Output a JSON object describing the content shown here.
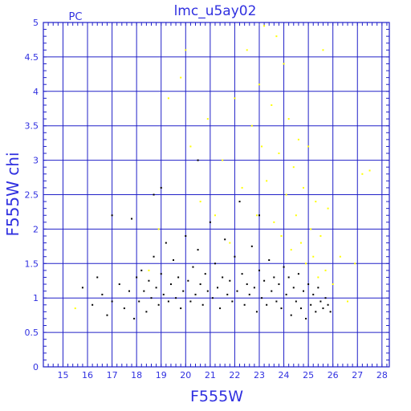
{
  "chart_data": {
    "type": "scatter",
    "title": "lmc_u5ay02",
    "corner_label": "PC",
    "xlabel": "F555W",
    "ylabel": "F555W chi",
    "xlim": [
      14.2,
      28.3
    ],
    "ylim": [
      0,
      5
    ],
    "xticks": [
      15,
      16,
      17,
      18,
      19,
      20,
      21,
      22,
      23,
      24,
      25,
      26,
      27,
      28
    ],
    "yticks": [
      0,
      0.5,
      1,
      1.5,
      2,
      2.5,
      3,
      3.5,
      4,
      4.5,
      5
    ],
    "grid": true,
    "colors": {
      "axis": "#3030e0",
      "grid": "#2020c8",
      "black_series": "#000000",
      "yellow_series": "#ffff00"
    },
    "series": [
      {
        "color": "black",
        "points": [
          [
            15.8,
            1.15
          ],
          [
            16.2,
            0.9
          ],
          [
            16.4,
            1.3
          ],
          [
            16.6,
            1.05
          ],
          [
            16.8,
            0.75
          ],
          [
            17.0,
            2.2
          ],
          [
            17.0,
            0.95
          ],
          [
            17.3,
            1.2
          ],
          [
            17.5,
            0.85
          ],
          [
            17.7,
            1.1
          ],
          [
            17.8,
            2.15
          ],
          [
            17.9,
            0.7
          ],
          [
            18.0,
            1.3
          ],
          [
            18.1,
            0.95
          ],
          [
            18.2,
            1.4
          ],
          [
            18.3,
            1.1
          ],
          [
            18.4,
            0.8
          ],
          [
            18.5,
            1.25
          ],
          [
            18.6,
            1.0
          ],
          [
            18.7,
            1.6
          ],
          [
            18.7,
            2.5
          ],
          [
            18.8,
            1.15
          ],
          [
            18.9,
            0.9
          ],
          [
            19.0,
            2.6
          ],
          [
            19.0,
            1.35
          ],
          [
            19.1,
            1.05
          ],
          [
            19.2,
            1.8
          ],
          [
            19.3,
            0.95
          ],
          [
            19.4,
            1.2
          ],
          [
            19.5,
            1.55
          ],
          [
            19.6,
            1.0
          ],
          [
            19.7,
            1.3
          ],
          [
            19.8,
            0.85
          ],
          [
            19.9,
            1.1
          ],
          [
            20.0,
            1.9
          ],
          [
            20.1,
            1.25
          ],
          [
            20.2,
            0.95
          ],
          [
            20.3,
            1.45
          ],
          [
            20.4,
            1.05
          ],
          [
            20.5,
            3.0
          ],
          [
            20.5,
            1.7
          ],
          [
            20.6,
            1.2
          ],
          [
            20.7,
            0.9
          ],
          [
            20.8,
            1.35
          ],
          [
            20.9,
            1.1
          ],
          [
            21.0,
            2.1
          ],
          [
            21.1,
            1.0
          ],
          [
            21.2,
            1.5
          ],
          [
            21.3,
            1.15
          ],
          [
            21.4,
            0.85
          ],
          [
            21.5,
            1.3
          ],
          [
            21.6,
            1.85
          ],
          [
            21.7,
            1.05
          ],
          [
            21.8,
            1.25
          ],
          [
            21.9,
            0.95
          ],
          [
            22.0,
            1.6
          ],
          [
            22.1,
            1.1
          ],
          [
            22.2,
            2.4
          ],
          [
            22.3,
            1.35
          ],
          [
            22.4,
            0.9
          ],
          [
            22.5,
            1.2
          ],
          [
            22.6,
            1.05
          ],
          [
            22.7,
            1.75
          ],
          [
            22.8,
            1.15
          ],
          [
            22.9,
            0.8
          ],
          [
            23.0,
            2.2
          ],
          [
            23.0,
            1.4
          ],
          [
            23.1,
            1.0
          ],
          [
            23.2,
            1.25
          ],
          [
            23.3,
            0.9
          ],
          [
            23.4,
            1.55
          ],
          [
            23.5,
            1.1
          ],
          [
            23.6,
            1.3
          ],
          [
            23.7,
            0.95
          ],
          [
            23.8,
            1.2
          ],
          [
            23.9,
            0.85
          ],
          [
            24.0,
            1.45
          ],
          [
            24.1,
            1.05
          ],
          [
            24.2,
            1.3
          ],
          [
            24.3,
            0.75
          ],
          [
            24.4,
            1.15
          ],
          [
            24.5,
            0.95
          ],
          [
            24.6,
            1.35
          ],
          [
            24.7,
            0.85
          ],
          [
            24.8,
            1.1
          ],
          [
            24.9,
            0.7
          ],
          [
            25.0,
            1.2
          ],
          [
            25.1,
            0.9
          ],
          [
            25.2,
            1.05
          ],
          [
            25.3,
            0.8
          ],
          [
            25.4,
            1.15
          ],
          [
            25.5,
            0.95
          ],
          [
            25.6,
            0.85
          ],
          [
            25.7,
            1.0
          ],
          [
            25.8,
            0.9
          ],
          [
            25.9,
            0.8
          ]
        ]
      },
      {
        "color": "yellow",
        "points": [
          [
            15.5,
            0.85
          ],
          [
            18.5,
            1.4
          ],
          [
            18.9,
            2.0
          ],
          [
            19.3,
            3.9
          ],
          [
            19.8,
            4.2
          ],
          [
            20.0,
            4.6
          ],
          [
            20.2,
            3.2
          ],
          [
            20.6,
            2.4
          ],
          [
            20.9,
            3.6
          ],
          [
            21.2,
            2.2
          ],
          [
            21.5,
            3.0
          ],
          [
            21.8,
            1.8
          ],
          [
            22.0,
            3.9
          ],
          [
            22.3,
            2.6
          ],
          [
            22.5,
            4.6
          ],
          [
            22.7,
            3.5
          ],
          [
            22.9,
            2.2
          ],
          [
            23.0,
            4.1
          ],
          [
            23.1,
            3.2
          ],
          [
            23.2,
            4.95
          ],
          [
            23.3,
            2.7
          ],
          [
            23.5,
            3.8
          ],
          [
            23.6,
            2.1
          ],
          [
            23.7,
            4.8
          ],
          [
            23.8,
            3.1
          ],
          [
            23.9,
            1.9
          ],
          [
            24.0,
            4.4
          ],
          [
            24.1,
            2.5
          ],
          [
            24.2,
            3.6
          ],
          [
            24.3,
            1.7
          ],
          [
            24.4,
            2.9
          ],
          [
            24.5,
            2.2
          ],
          [
            24.6,
            3.3
          ],
          [
            24.7,
            1.8
          ],
          [
            24.8,
            2.6
          ],
          [
            24.9,
            1.5
          ],
          [
            25.0,
            3.2
          ],
          [
            25.1,
            2.0
          ],
          [
            25.2,
            1.6
          ],
          [
            25.3,
            2.4
          ],
          [
            25.4,
            1.3
          ],
          [
            25.5,
            1.9
          ],
          [
            25.6,
            4.6
          ],
          [
            25.7,
            1.4
          ],
          [
            25.8,
            2.3
          ],
          [
            26.0,
            1.2
          ],
          [
            26.3,
            1.6
          ],
          [
            26.6,
            0.95
          ],
          [
            26.9,
            1.5
          ],
          [
            27.2,
            2.8
          ],
          [
            27.5,
            2.85
          ]
        ]
      }
    ]
  }
}
